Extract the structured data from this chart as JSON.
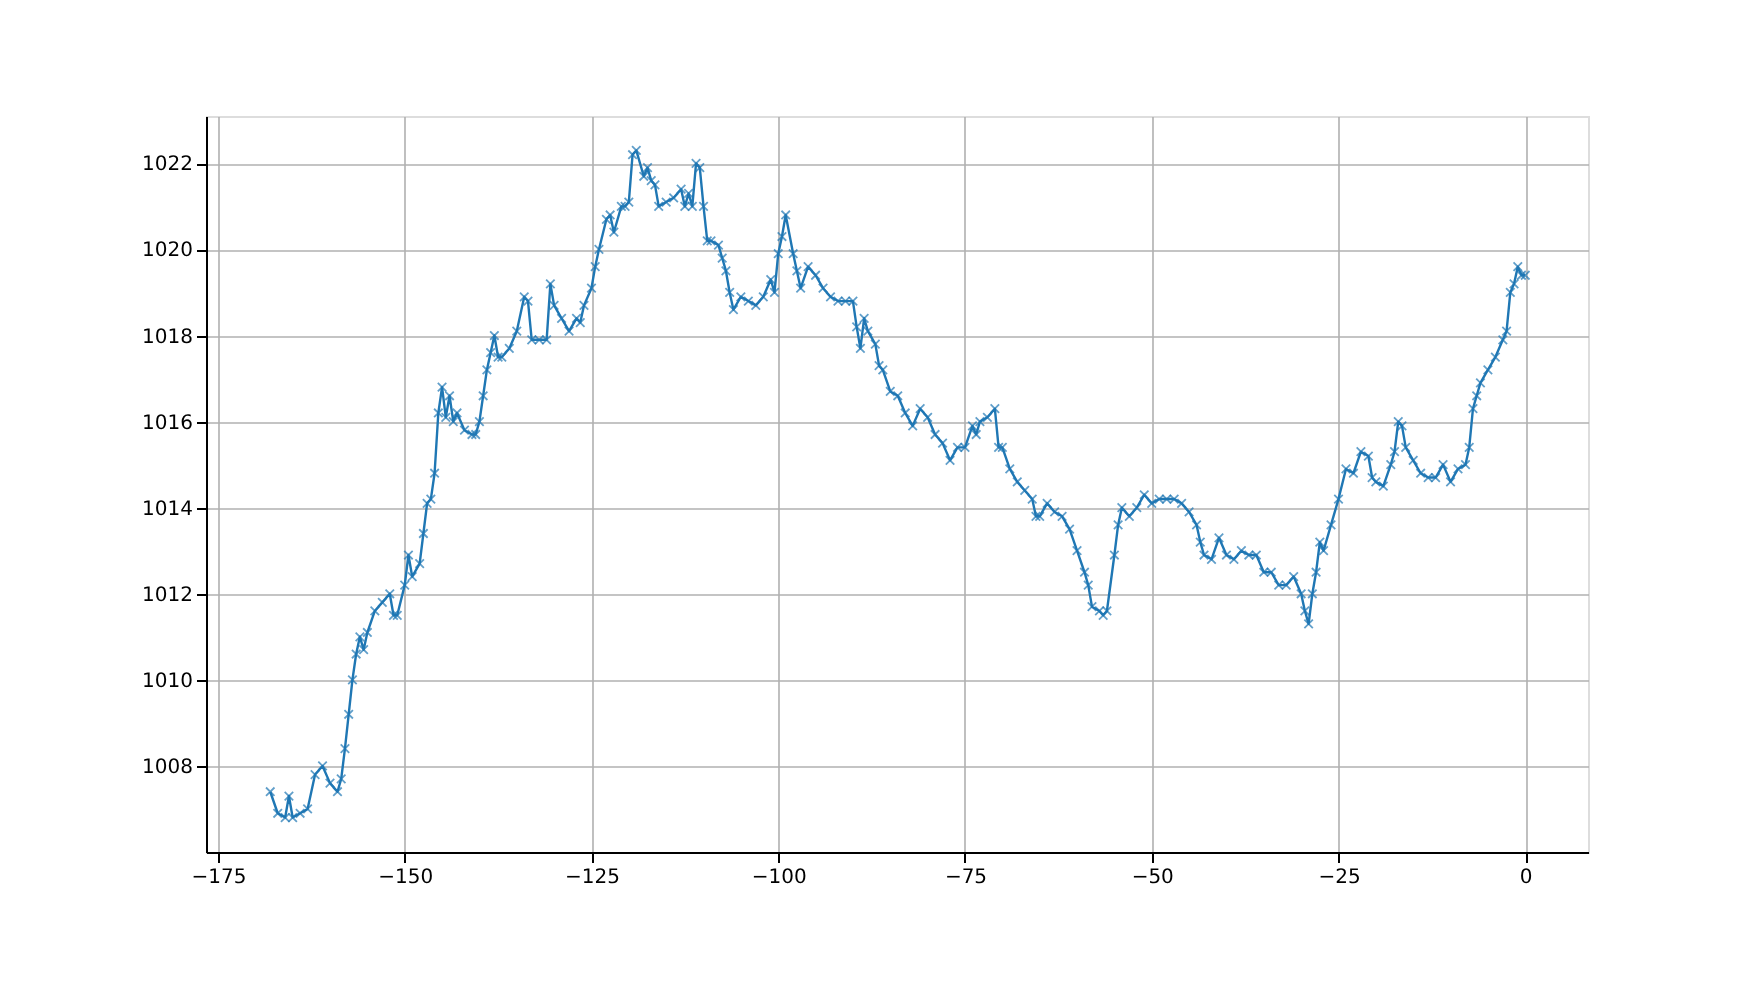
{
  "chart_data": {
    "type": "line",
    "marker": "cross",
    "line_style": "solid",
    "grid": true,
    "xlim": [
      -176.6,
      8.4
    ],
    "xticks": [
      -175,
      -150,
      -125,
      -100,
      -75,
      -50,
      -25,
      0
    ],
    "ylim": [
      1006.0,
      1023.1
    ],
    "yticks": [
      1008,
      1010,
      1012,
      1014,
      1016,
      1018,
      1020,
      1022
    ],
    "x": [
      -168,
      -167,
      -166,
      -165.5,
      -165,
      -164,
      -163,
      -162,
      -161,
      -160,
      -159,
      -158.5,
      -158,
      -157.5,
      -157,
      -156.5,
      -156,
      -155.5,
      -155,
      -154,
      -153,
      -152,
      -151.5,
      -151,
      -150,
      -149.5,
      -149,
      -148,
      -147.5,
      -147,
      -146.5,
      -146,
      -145.5,
      -145,
      -144.5,
      -144,
      -143.5,
      -143,
      -142,
      -141,
      -140.5,
      -140,
      -139.5,
      -139,
      -138.5,
      -138,
      -137.5,
      -137,
      -136,
      -135,
      -134,
      -133.5,
      -133,
      -132,
      -131,
      -130.5,
      -130,
      -129,
      -128,
      -127,
      -126.5,
      -126,
      -125,
      -124.5,
      -124,
      -123,
      -122.5,
      -122,
      -121,
      -120.5,
      -120,
      -119.5,
      -119,
      -118,
      -117.5,
      -117,
      -116.5,
      -116,
      -115,
      -114,
      -113,
      -112.5,
      -112,
      -111.5,
      -111,
      -110.5,
      -110,
      -109.5,
      -109,
      -108,
      -107.5,
      -107,
      -106.5,
      -106,
      -105,
      -104,
      -103,
      -102,
      -101,
      -100.5,
      -100,
      -99.5,
      -99,
      -98,
      -97.5,
      -97,
      -96,
      -95,
      -94,
      -93,
      -92,
      -91,
      -90,
      -89.5,
      -89,
      -88.5,
      -88,
      -87,
      -86.5,
      -86,
      -85,
      -84,
      -83,
      -82,
      -81,
      -80,
      -79,
      -78,
      -77,
      -76,
      -75,
      -74,
      -73.5,
      -73,
      -72,
      -71,
      -70.5,
      -70,
      -69,
      -68,
      -67,
      -66,
      -65.5,
      -65,
      -64,
      -63,
      -62,
      -61,
      -60,
      -59,
      -58.5,
      -58,
      -57,
      -56.5,
      -56,
      -55,
      -54.5,
      -54,
      -53,
      -52,
      -51,
      -50,
      -49,
      -48,
      -47,
      -46,
      -45,
      -44,
      -43.5,
      -43,
      -42,
      -41,
      -40,
      -39,
      -38,
      -37,
      -36,
      -35,
      -34,
      -33,
      -32,
      -31,
      -30,
      -29.5,
      -29,
      -28.5,
      -28,
      -27.5,
      -27,
      -26,
      -25,
      -24,
      -23,
      -22,
      -21,
      -20.5,
      -20,
      -19,
      -18,
      -17.5,
      -17,
      -16.5,
      -16,
      -15,
      -14,
      -13,
      -12,
      -11,
      -10,
      -9,
      -8,
      -7.5,
      -7,
      -6.5,
      -6,
      -5,
      -4,
      -3,
      -2.5,
      -2,
      -1.5,
      -1,
      -0.5,
      0
    ],
    "series": [
      {
        "color": "#1f77b4",
        "values": [
          1007.4,
          1006.9,
          1006.8,
          1007.3,
          1006.8,
          1006.9,
          1007.0,
          1007.8,
          1008.0,
          1007.6,
          1007.4,
          1007.7,
          1008.4,
          1009.2,
          1010.0,
          1010.6,
          1011.0,
          1010.7,
          1011.1,
          1011.6,
          1011.8,
          1012.0,
          1011.5,
          1011.5,
          1012.2,
          1012.9,
          1012.4,
          1012.7,
          1013.4,
          1014.1,
          1014.2,
          1014.8,
          1016.2,
          1016.8,
          1016.1,
          1016.6,
          1016.0,
          1016.2,
          1015.8,
          1015.7,
          1015.7,
          1016.0,
          1016.6,
          1017.2,
          1017.6,
          1018.0,
          1017.5,
          1017.5,
          1017.7,
          1018.1,
          1018.9,
          1018.8,
          1017.9,
          1017.9,
          1017.9,
          1019.2,
          1018.7,
          1018.4,
          1018.1,
          1018.4,
          1018.3,
          1018.7,
          1019.1,
          1019.6,
          1020.0,
          1020.7,
          1020.8,
          1020.4,
          1021.0,
          1021.0,
          1021.1,
          1022.2,
          1022.3,
          1021.7,
          1021.9,
          1021.6,
          1021.5,
          1021.0,
          1021.1,
          1021.2,
          1021.4,
          1021.0,
          1021.3,
          1021.0,
          1022.0,
          1021.9,
          1021.0,
          1020.2,
          1020.2,
          1020.1,
          1019.8,
          1019.5,
          1019.0,
          1018.6,
          1018.9,
          1018.8,
          1018.7,
          1018.9,
          1019.3,
          1019.0,
          1019.9,
          1020.3,
          1020.8,
          1019.9,
          1019.5,
          1019.1,
          1019.6,
          1019.4,
          1019.1,
          1018.9,
          1018.8,
          1018.8,
          1018.8,
          1018.2,
          1017.7,
          1018.4,
          1018.1,
          1017.8,
          1017.3,
          1017.2,
          1016.7,
          1016.6,
          1016.2,
          1015.9,
          1016.3,
          1016.1,
          1015.7,
          1015.5,
          1015.1,
          1015.4,
          1015.4,
          1015.9,
          1015.7,
          1016.0,
          1016.1,
          1016.3,
          1015.4,
          1015.4,
          1014.9,
          1014.6,
          1014.4,
          1014.2,
          1013.8,
          1013.8,
          1014.1,
          1013.9,
          1013.8,
          1013.5,
          1013.0,
          1012.5,
          1012.2,
          1011.7,
          1011.6,
          1011.5,
          1011.6,
          1012.9,
          1013.6,
          1014.0,
          1013.8,
          1014.0,
          1014.3,
          1014.1,
          1014.2,
          1014.2,
          1014.2,
          1014.1,
          1013.9,
          1013.6,
          1013.2,
          1012.9,
          1012.8,
          1013.3,
          1012.9,
          1012.8,
          1013.0,
          1012.9,
          1012.9,
          1012.5,
          1012.5,
          1012.2,
          1012.2,
          1012.4,
          1012.0,
          1011.6,
          1011.3,
          1012.0,
          1012.5,
          1013.2,
          1013.0,
          1013.6,
          1014.2,
          1014.9,
          1014.8,
          1015.3,
          1015.2,
          1014.7,
          1014.6,
          1014.5,
          1015.0,
          1015.3,
          1016.0,
          1015.9,
          1015.4,
          1015.1,
          1014.8,
          1014.7,
          1014.7,
          1015.0,
          1014.6,
          1014.9,
          1015.0,
          1015.4,
          1016.3,
          1016.6,
          1016.9,
          1017.2,
          1017.5,
          1017.9,
          1018.1,
          1019.0,
          1019.2,
          1019.6,
          1019.4,
          1019.4
        ]
      }
    ]
  }
}
